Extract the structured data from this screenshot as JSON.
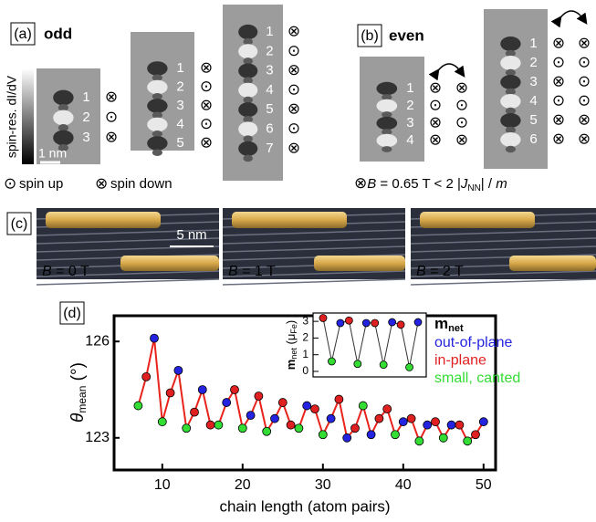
{
  "panel_a": {
    "label": "(a)",
    "title": "odd",
    "colorbar_label": "spin-res. dI/dV",
    "scale_label": "1 nm",
    "chains": [
      {
        "numbers": [
          "1",
          "2",
          "3"
        ],
        "spins": [
          "⊗",
          "⊙",
          "⊗"
        ]
      },
      {
        "numbers": [
          "1",
          "2",
          "3",
          "4",
          "5"
        ],
        "spins": [
          "⊗",
          "⊙",
          "⊗",
          "⊙",
          "⊗"
        ]
      },
      {
        "numbers": [
          "1",
          "2",
          "3",
          "4",
          "5",
          "6",
          "7"
        ],
        "spins": [
          "⊗",
          "⊙",
          "⊗",
          "⊙",
          "⊗",
          "⊙",
          "⊗"
        ]
      }
    ],
    "legend": [
      {
        "symbol": "⊙",
        "label": "spin up"
      },
      {
        "symbol": "⊗",
        "label": "spin down"
      }
    ]
  },
  "panel_b": {
    "label": "(b)",
    "title": "even",
    "chains": [
      {
        "numbers": [
          "1",
          "2",
          "3",
          "4"
        ],
        "spins": [
          [
            "⊗",
            "⊗"
          ],
          [
            "⊙",
            "⊙"
          ],
          [
            "⊗",
            "⊙"
          ],
          [
            "⊗",
            "⊗"
          ]
        ]
      },
      {
        "numbers": [
          "1",
          "2",
          "3",
          "4",
          "5",
          "6"
        ],
        "spins": [
          [
            "⊗",
            "⊗"
          ],
          [
            "⊙",
            "⊙"
          ],
          [
            "⊗",
            "⊙"
          ],
          [
            "⊙",
            "⊙"
          ],
          [
            "⊗",
            "⊗"
          ],
          [
            "⊗",
            "⊗"
          ]
        ]
      }
    ],
    "field_label": [
      "⊗",
      "B",
      " = 0.65 T < 2 |",
      "J",
      "NN",
      "| / ",
      "m"
    ]
  },
  "panel_c": {
    "label": "(c)",
    "scale_label": "5 nm",
    "fields": [
      [
        "B",
        " = 0 T"
      ],
      [
        "B",
        " = 1 T"
      ],
      [
        "B",
        " = 2 T"
      ]
    ]
  },
  "panel_d": {
    "label": "(d)"
  },
  "chart_data": [
    {
      "type": "line",
      "xlabel": "chain length (atom pairs)",
      "ylabel": [
        "θ",
        "mean",
        " (°)"
      ],
      "x": [
        7,
        8,
        9,
        10,
        11,
        12,
        13,
        14,
        15,
        16,
        17,
        18,
        19,
        20,
        21,
        22,
        23,
        24,
        25,
        26,
        27,
        28,
        29,
        30,
        31,
        32,
        33,
        34,
        35,
        36,
        37,
        38,
        39,
        40,
        41,
        42,
        43,
        44,
        45,
        46,
        47,
        48,
        49,
        50
      ],
      "series": [
        {
          "color": "#e8231c",
          "values": [
            124.0,
            124.9,
            126.1,
            123.5,
            124.4,
            125.1,
            123.3,
            123.8,
            124.5,
            123.4,
            123.4,
            124.1,
            124.5,
            123.3,
            123.7,
            124.3,
            123.2,
            123.6,
            124.1,
            123.4,
            123.3,
            124.0,
            123.9,
            123.1,
            123.6,
            124.2,
            123.0,
            123.3,
            124.0,
            123.1,
            123.6,
            123.9,
            123.1,
            123.5,
            123.6,
            122.9,
            123.4,
            123.5,
            123.0,
            123.4,
            123.4,
            122.9,
            123.1,
            123.5
          ],
          "point_colors": [
            "#33dd33",
            "#e02020",
            "#2323e0",
            "#33dd33",
            "#e02020",
            "#2323e0",
            "#33dd33",
            "#e02020",
            "#2323e0",
            "#e02020",
            "#33dd33",
            "#2323e0",
            "#e02020",
            "#33dd33",
            "#2323e0",
            "#e02020",
            "#33dd33",
            "#2323e0",
            "#e02020",
            "#e02020",
            "#33dd33",
            "#2323e0",
            "#e02020",
            "#33dd33",
            "#2323e0",
            "#e02020",
            "#2323e0",
            "#e02020",
            "#33dd33",
            "#2323e0",
            "#e02020",
            "#e02020",
            "#33dd33",
            "#2323e0",
            "#e02020",
            "#33dd33",
            "#2323e0",
            "#e02020",
            "#33dd33",
            "#2323e0",
            "#e02020",
            "#33dd33",
            "#e02020",
            "#2323e0"
          ]
        }
      ],
      "xlim": [
        4,
        51.5
      ],
      "ylim": [
        122,
        126.8
      ],
      "xticks": [
        10,
        20,
        30,
        40,
        50
      ],
      "yticks": [
        123,
        126
      ],
      "legend_title": [
        "m",
        "net"
      ],
      "legend": [
        {
          "label": "out-of-plane",
          "color": "#2323e0"
        },
        {
          "label": "in-plane",
          "color": "#e02020"
        },
        {
          "label": "small, canted",
          "color": "#33dd33"
        }
      ]
    },
    {
      "type": "line",
      "ylabel": [
        "m",
        "net",
        " (μ",
        "Fe",
        ")"
      ],
      "categories": [
        null,
        null,
        null,
        null,
        null,
        null,
        null,
        null,
        null,
        null,
        null,
        null
      ],
      "series": [
        {
          "color": "#333333",
          "values": [
            3.2,
            0.6,
            2.9,
            3.05,
            0.45,
            2.9,
            2.9,
            0.4,
            2.95,
            2.8,
            0.25,
            2.95
          ],
          "point_colors": [
            "#e02020",
            "#33dd33",
            "#2323e0",
            "#e02020",
            "#33dd33",
            "#2323e0",
            "#e02020",
            "#33dd33",
            "#2323e0",
            "#e02020",
            "#33dd33",
            "#2323e0"
          ]
        }
      ],
      "ylim": [
        -0.33,
        3.5
      ],
      "yticks": [
        0,
        1,
        2,
        3
      ]
    }
  ]
}
